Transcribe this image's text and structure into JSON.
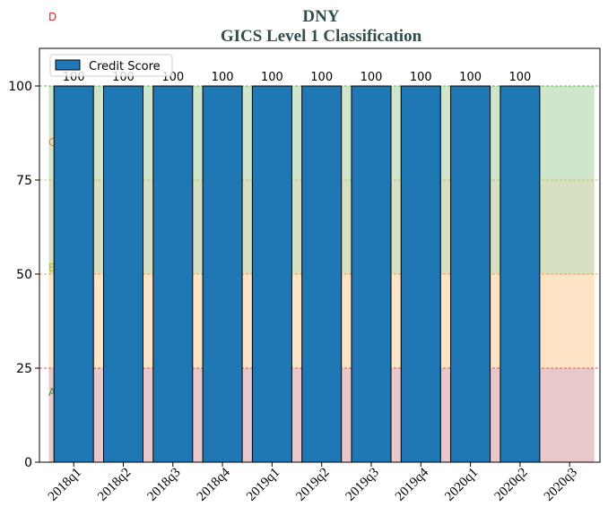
{
  "chart_data": {
    "type": "bar",
    "title": "DNY",
    "subtitle": "GICS Level 1 Classification",
    "xlabel": "",
    "ylabel": "",
    "ylim": [
      0,
      110
    ],
    "yticks": [
      0,
      25,
      50,
      75,
      100
    ],
    "categories": [
      "2018q1",
      "2018q2",
      "2018q3",
      "2018q4",
      "2019q1",
      "2019q2",
      "2019q3",
      "2019q4",
      "2020q1",
      "2020q2",
      "2020q3"
    ],
    "series": [
      {
        "name": "Credit Score",
        "values": [
          100,
          100,
          100,
          100,
          100,
          100,
          100,
          100,
          100,
          100,
          null
        ],
        "color": "#1f77b4"
      }
    ],
    "data_labels": [
      "100",
      "100",
      "100",
      "100",
      "100",
      "100",
      "100",
      "100",
      "100",
      "100",
      ""
    ],
    "zones": [
      {
        "label": "A",
        "from": 0,
        "to": 25,
        "fill": "#e8c8cb",
        "label_color": "#2ca02c",
        "line_color": "#d62728"
      },
      {
        "label": "B",
        "from": 25,
        "to": 50,
        "fill": "#fde4c6",
        "label_color": "#bcbd22",
        "line_color": "#ff7f0e"
      },
      {
        "label": "C",
        "from": 50,
        "to": 75,
        "fill": "#d7e0c3",
        "label_color": "#ff7f0e",
        "line_color": "#bcbd22"
      },
      {
        "label": "D",
        "from": 75,
        "to": 100,
        "fill": "#cfe6cc",
        "label_color": "#d62728",
        "line_color": "#2ca02c"
      }
    ],
    "legend": {
      "position": "top-left"
    },
    "grid": false
  }
}
